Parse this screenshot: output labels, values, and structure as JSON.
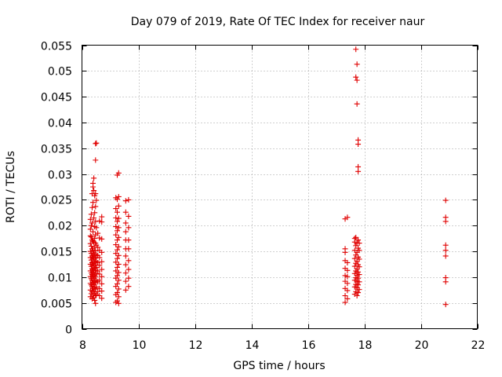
{
  "chart_data": {
    "type": "scatter",
    "title": "Day 079 of 2019, Rate Of TEC Index for receiver naur",
    "xlabel": "GPS time / hours",
    "ylabel": "ROTI / TECUs",
    "xlim": [
      8,
      22
    ],
    "ylim": [
      0,
      0.055
    ],
    "xticks": [
      8,
      10,
      12,
      14,
      16,
      18,
      20,
      22
    ],
    "xtick_labels": [
      "8",
      "10",
      "12",
      "14",
      "16",
      "18",
      "20",
      "22"
    ],
    "yticks": [
      0,
      0.005,
      0.01,
      0.015,
      0.02,
      0.025,
      0.03,
      0.035,
      0.04,
      0.045,
      0.05,
      0.055
    ],
    "ytick_labels": [
      "0",
      "0.005",
      "0.01",
      "0.015",
      "0.02",
      "0.025",
      "0.03",
      "0.035",
      "0.04",
      "0.045",
      "0.05",
      "0.055"
    ],
    "grid": true,
    "marker": "+",
    "color": "#e00000",
    "series": [
      {
        "name": "ROTI",
        "points": [
          [
            8.3,
            0.0062
          ],
          [
            8.3,
            0.0075
          ],
          [
            8.3,
            0.0088
          ],
          [
            8.3,
            0.0101
          ],
          [
            8.3,
            0.0112
          ],
          [
            8.3,
            0.0125
          ],
          [
            8.3,
            0.0138
          ],
          [
            8.3,
            0.015
          ],
          [
            8.3,
            0.0165
          ],
          [
            8.3,
            0.018
          ],
          [
            8.3,
            0.0193
          ],
          [
            8.3,
            0.0212
          ],
          [
            8.33,
            0.0068
          ],
          [
            8.33,
            0.0085
          ],
          [
            8.33,
            0.0097
          ],
          [
            8.33,
            0.0108
          ],
          [
            8.33,
            0.0121
          ],
          [
            8.33,
            0.0133
          ],
          [
            8.33,
            0.0146
          ],
          [
            8.33,
            0.016
          ],
          [
            8.33,
            0.0178
          ],
          [
            8.33,
            0.02
          ],
          [
            8.33,
            0.0222
          ],
          [
            8.36,
            0.0058
          ],
          [
            8.36,
            0.0072
          ],
          [
            8.36,
            0.0082
          ],
          [
            8.36,
            0.0094
          ],
          [
            8.36,
            0.0105
          ],
          [
            8.36,
            0.0116
          ],
          [
            8.36,
            0.0128
          ],
          [
            8.36,
            0.0141
          ],
          [
            8.36,
            0.0155
          ],
          [
            8.36,
            0.0172
          ],
          [
            8.36,
            0.0205
          ],
          [
            8.36,
            0.0235
          ],
          [
            8.36,
            0.0262
          ],
          [
            8.39,
            0.0065
          ],
          [
            8.39,
            0.0078
          ],
          [
            8.39,
            0.009
          ],
          [
            8.39,
            0.0102
          ],
          [
            8.39,
            0.0114
          ],
          [
            8.39,
            0.0126
          ],
          [
            8.39,
            0.0139
          ],
          [
            8.39,
            0.0152
          ],
          [
            8.39,
            0.017
          ],
          [
            8.39,
            0.0188
          ],
          [
            8.39,
            0.0245
          ],
          [
            8.39,
            0.0275
          ],
          [
            8.39,
            0.0282
          ],
          [
            8.42,
            0.006
          ],
          [
            8.42,
            0.0073
          ],
          [
            8.42,
            0.0086
          ],
          [
            8.42,
            0.0098
          ],
          [
            8.42,
            0.011
          ],
          [
            8.42,
            0.0122
          ],
          [
            8.42,
            0.0135
          ],
          [
            8.42,
            0.0147
          ],
          [
            8.42,
            0.0168
          ],
          [
            8.42,
            0.0215
          ],
          [
            8.42,
            0.0268
          ],
          [
            8.42,
            0.0292
          ],
          [
            8.45,
            0.0055
          ],
          [
            8.45,
            0.0069
          ],
          [
            8.45,
            0.008
          ],
          [
            8.45,
            0.0092
          ],
          [
            8.45,
            0.0104
          ],
          [
            8.45,
            0.0117
          ],
          [
            8.45,
            0.013
          ],
          [
            8.45,
            0.0144
          ],
          [
            8.45,
            0.0158
          ],
          [
            8.45,
            0.0175
          ],
          [
            8.45,
            0.0198
          ],
          [
            8.45,
            0.0225
          ],
          [
            8.45,
            0.0258
          ],
          [
            8.48,
            0.0049
          ],
          [
            8.48,
            0.0064
          ],
          [
            8.48,
            0.0077
          ],
          [
            8.48,
            0.0089
          ],
          [
            8.48,
            0.0101
          ],
          [
            8.48,
            0.0113
          ],
          [
            8.48,
            0.0124
          ],
          [
            8.48,
            0.0137
          ],
          [
            8.48,
            0.0151
          ],
          [
            8.48,
            0.0166
          ],
          [
            8.48,
            0.0182
          ],
          [
            8.48,
            0.0208
          ],
          [
            8.48,
            0.0237
          ],
          [
            8.48,
            0.0262
          ],
          [
            8.48,
            0.0327
          ],
          [
            8.48,
            0.0359
          ],
          [
            8.51,
            0.0066
          ],
          [
            8.51,
            0.0081
          ],
          [
            8.51,
            0.0094
          ],
          [
            8.51,
            0.0107
          ],
          [
            8.51,
            0.0119
          ],
          [
            8.51,
            0.0131
          ],
          [
            8.51,
            0.0143
          ],
          [
            8.51,
            0.0162
          ],
          [
            8.51,
            0.0196
          ],
          [
            8.51,
            0.0249
          ],
          [
            8.51,
            0.036
          ],
          [
            8.56,
            0.0072
          ],
          [
            8.56,
            0.0091
          ],
          [
            8.56,
            0.0112
          ],
          [
            8.56,
            0.0128
          ],
          [
            8.56,
            0.0142
          ],
          [
            8.56,
            0.0158
          ],
          [
            8.56,
            0.0185
          ],
          [
            8.62,
            0.0064
          ],
          [
            8.62,
            0.0078
          ],
          [
            8.62,
            0.0094
          ],
          [
            8.62,
            0.0106
          ],
          [
            8.62,
            0.0123
          ],
          [
            8.62,
            0.0138
          ],
          [
            8.62,
            0.0152
          ],
          [
            8.62,
            0.0176
          ],
          [
            8.62,
            0.0209
          ],
          [
            8.7,
            0.0059
          ],
          [
            8.7,
            0.0073
          ],
          [
            8.7,
            0.0087
          ],
          [
            8.7,
            0.0101
          ],
          [
            8.7,
            0.0115
          ],
          [
            8.7,
            0.013
          ],
          [
            8.7,
            0.0148
          ],
          [
            8.7,
            0.0174
          ],
          [
            8.7,
            0.0207
          ],
          [
            8.7,
            0.0217
          ],
          [
            9.2,
            0.0051
          ],
          [
            9.2,
            0.0066
          ],
          [
            9.2,
            0.0082
          ],
          [
            9.2,
            0.0098
          ],
          [
            9.2,
            0.0112
          ],
          [
            9.2,
            0.0129
          ],
          [
            9.2,
            0.0146
          ],
          [
            9.2,
            0.0163
          ],
          [
            9.2,
            0.0182
          ],
          [
            9.2,
            0.0198
          ],
          [
            9.2,
            0.0215
          ],
          [
            9.2,
            0.0233
          ],
          [
            9.2,
            0.0254
          ],
          [
            9.25,
            0.0054
          ],
          [
            9.25,
            0.007
          ],
          [
            9.25,
            0.0087
          ],
          [
            9.25,
            0.0103
          ],
          [
            9.25,
            0.0119
          ],
          [
            9.25,
            0.0136
          ],
          [
            9.25,
            0.0153
          ],
          [
            9.25,
            0.0172
          ],
          [
            9.25,
            0.019
          ],
          [
            9.25,
            0.0208
          ],
          [
            9.25,
            0.0226
          ],
          [
            9.25,
            0.0251
          ],
          [
            9.25,
            0.0298
          ],
          [
            9.3,
            0.0049
          ],
          [
            9.3,
            0.0062
          ],
          [
            9.3,
            0.0077
          ],
          [
            9.3,
            0.0094
          ],
          [
            9.3,
            0.0109
          ],
          [
            9.3,
            0.0125
          ],
          [
            9.3,
            0.0142
          ],
          [
            9.3,
            0.0159
          ],
          [
            9.3,
            0.0177
          ],
          [
            9.3,
            0.0196
          ],
          [
            9.3,
            0.0214
          ],
          [
            9.3,
            0.0238
          ],
          [
            9.3,
            0.0256
          ],
          [
            9.3,
            0.0302
          ],
          [
            9.55,
            0.0075
          ],
          [
            9.55,
            0.0092
          ],
          [
            9.55,
            0.0108
          ],
          [
            9.55,
            0.0124
          ],
          [
            9.55,
            0.0141
          ],
          [
            9.55,
            0.0155
          ],
          [
            9.55,
            0.0172
          ],
          [
            9.55,
            0.0188
          ],
          [
            9.55,
            0.0205
          ],
          [
            9.55,
            0.0226
          ],
          [
            9.55,
            0.0248
          ],
          [
            9.65,
            0.0082
          ],
          [
            9.65,
            0.0098
          ],
          [
            9.65,
            0.0115
          ],
          [
            9.65,
            0.0132
          ],
          [
            9.65,
            0.0155
          ],
          [
            9.65,
            0.0172
          ],
          [
            9.65,
            0.0196
          ],
          [
            9.65,
            0.0218
          ],
          [
            9.65,
            0.025
          ],
          [
            17.32,
            0.0051
          ],
          [
            17.32,
            0.0064
          ],
          [
            17.32,
            0.0078
          ],
          [
            17.32,
            0.0092
          ],
          [
            17.32,
            0.0103
          ],
          [
            17.32,
            0.0117
          ],
          [
            17.32,
            0.0132
          ],
          [
            17.32,
            0.0148
          ],
          [
            17.32,
            0.0155
          ],
          [
            17.32,
            0.0213
          ],
          [
            17.4,
            0.0058
          ],
          [
            17.4,
            0.0074
          ],
          [
            17.4,
            0.0088
          ],
          [
            17.4,
            0.0101
          ],
          [
            17.4,
            0.0113
          ],
          [
            17.4,
            0.0128
          ],
          [
            17.4,
            0.0216
          ],
          [
            17.66,
            0.0067
          ],
          [
            17.66,
            0.0081
          ],
          [
            17.66,
            0.0094
          ],
          [
            17.66,
            0.0107
          ],
          [
            17.66,
            0.0121
          ],
          [
            17.66,
            0.0136
          ],
          [
            17.66,
            0.0152
          ],
          [
            17.66,
            0.0168
          ],
          [
            17.66,
            0.0175
          ],
          [
            17.7,
            0.0072
          ],
          [
            17.7,
            0.0086
          ],
          [
            17.7,
            0.0099
          ],
          [
            17.7,
            0.0112
          ],
          [
            17.7,
            0.0127
          ],
          [
            17.7,
            0.0143
          ],
          [
            17.7,
            0.0161
          ],
          [
            17.7,
            0.0177
          ],
          [
            17.7,
            0.0488
          ],
          [
            17.7,
            0.0542
          ],
          [
            17.74,
            0.0064
          ],
          [
            17.74,
            0.0079
          ],
          [
            17.74,
            0.0092
          ],
          [
            17.74,
            0.0104
          ],
          [
            17.74,
            0.0116
          ],
          [
            17.74,
            0.0131
          ],
          [
            17.74,
            0.0148
          ],
          [
            17.74,
            0.0166
          ],
          [
            17.74,
            0.0436
          ],
          [
            17.74,
            0.0482
          ],
          [
            17.74,
            0.0513
          ],
          [
            17.78,
            0.007
          ],
          [
            17.78,
            0.0085
          ],
          [
            17.78,
            0.0098
          ],
          [
            17.78,
            0.011
          ],
          [
            17.78,
            0.0124
          ],
          [
            17.78,
            0.0139
          ],
          [
            17.78,
            0.0156
          ],
          [
            17.78,
            0.0172
          ],
          [
            17.78,
            0.0305
          ],
          [
            17.78,
            0.0314
          ],
          [
            17.78,
            0.0358
          ],
          [
            17.78,
            0.0366
          ],
          [
            17.82,
            0.0076
          ],
          [
            17.82,
            0.0091
          ],
          [
            17.82,
            0.0105
          ],
          [
            17.82,
            0.012
          ],
          [
            17.82,
            0.0135
          ],
          [
            17.82,
            0.0152
          ],
          [
            17.82,
            0.0166
          ],
          [
            20.88,
            0.0047
          ],
          [
            20.88,
            0.0091
          ],
          [
            20.88,
            0.0099
          ],
          [
            20.88,
            0.0141
          ],
          [
            20.88,
            0.0152
          ],
          [
            20.88,
            0.0162
          ],
          [
            20.88,
            0.0208
          ],
          [
            20.88,
            0.0216
          ],
          [
            20.88,
            0.0249
          ]
        ]
      }
    ]
  }
}
